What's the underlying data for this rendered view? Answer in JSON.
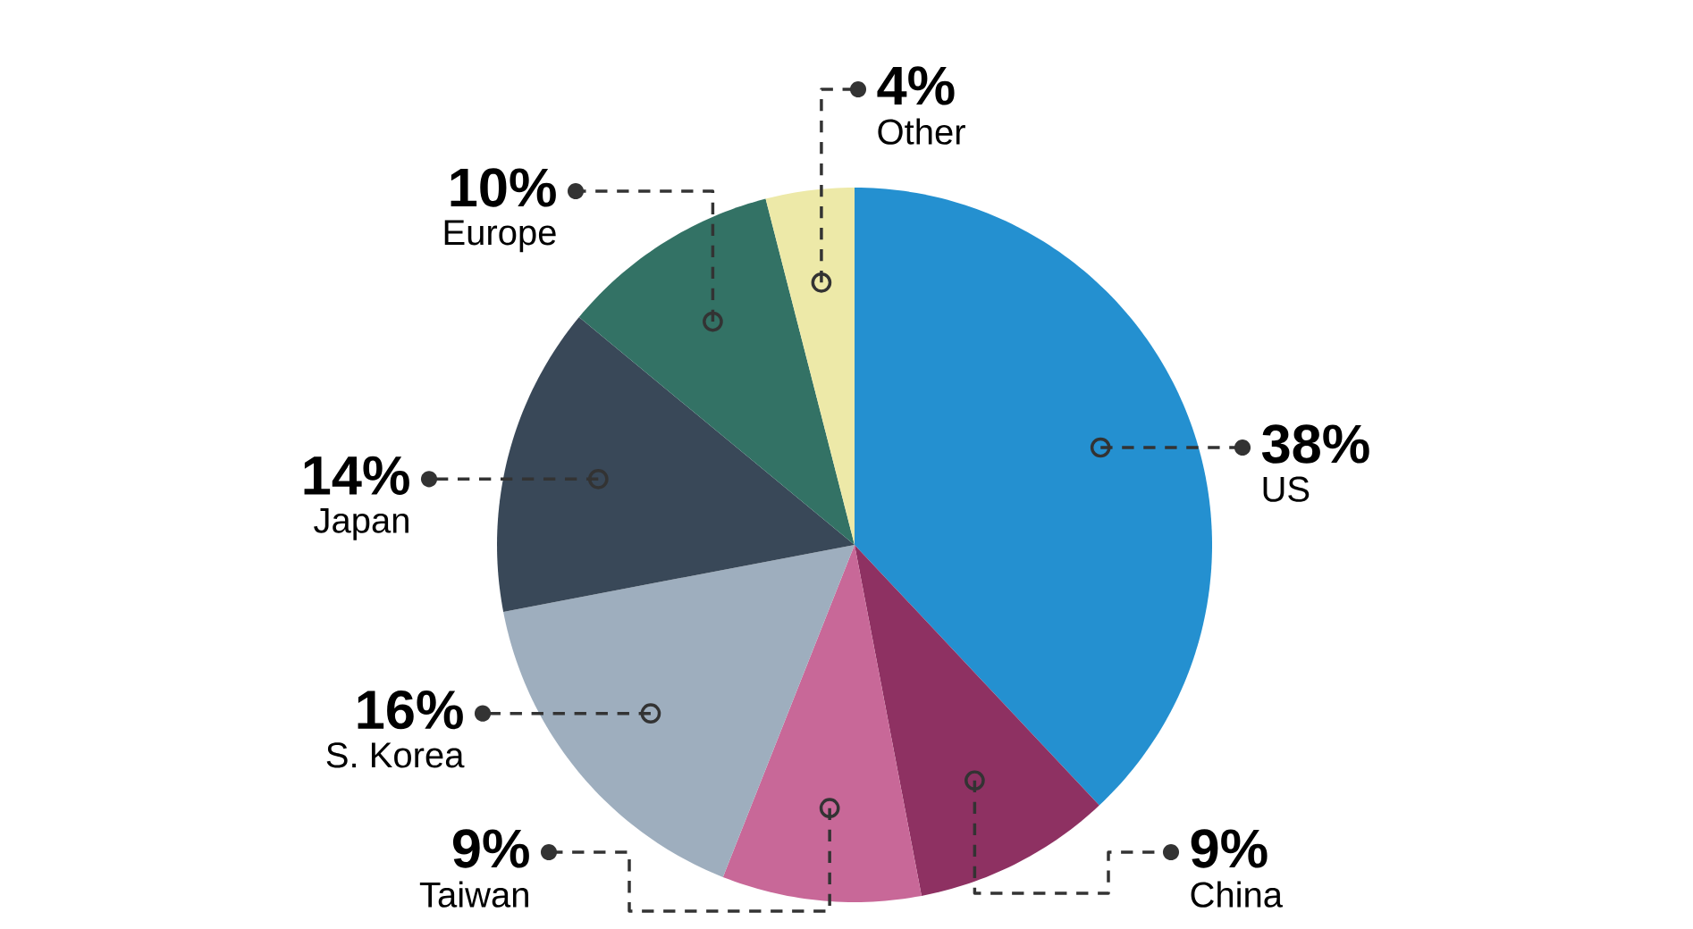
{
  "chart_data": {
    "type": "pie",
    "categories": [
      "US",
      "China",
      "Taiwan",
      "S. Korea",
      "Japan",
      "Europe",
      "Other"
    ],
    "values": [
      38,
      9,
      9,
      16,
      14,
      10,
      4
    ],
    "value_labels": [
      "38%",
      "9%",
      "9%",
      "16%",
      "14%",
      "10%",
      "4%"
    ],
    "colors": [
      "#2490d0",
      "#8e3162",
      "#c86898",
      "#9eaebe",
      "#394858",
      "#337265",
      "#ede9a8"
    ]
  }
}
